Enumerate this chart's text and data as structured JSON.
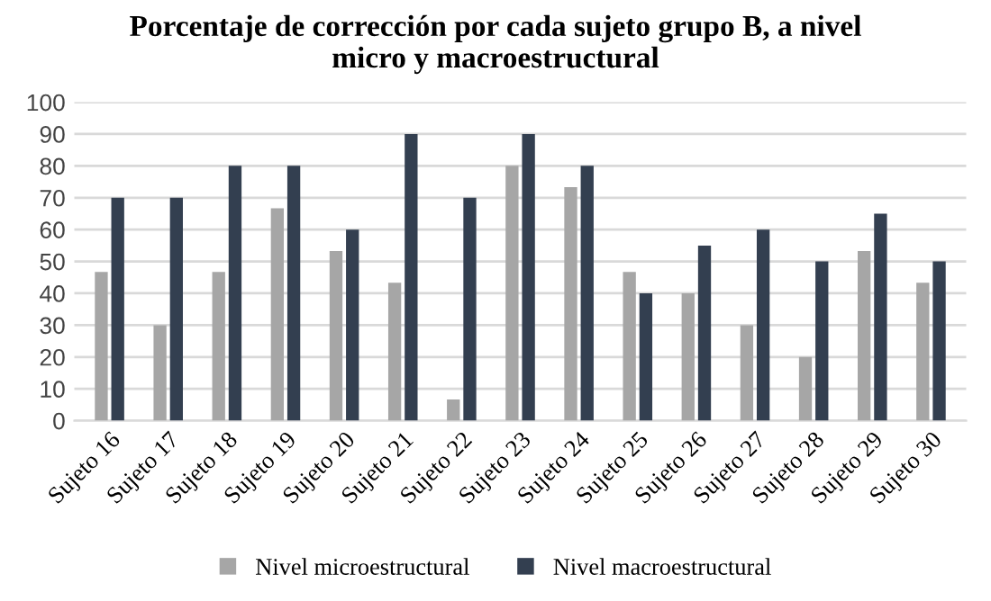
{
  "chart_data": {
    "type": "bar",
    "title": "Porcentaje de corrección por cada sujeto grupo B, a nivel\nmicro y macroestructural",
    "categories": [
      "Sujeto 16",
      "Sujeto 17",
      "Sujeto 18",
      "Sujeto 19",
      "Sujeto 20",
      "Sujeto 21",
      "Sujeto 22",
      "Sujeto 23",
      "Sujeto 24",
      "Sujeto 25",
      "Sujeto 26",
      "Sujeto 27",
      "Sujeto 28",
      "Sujeto 29",
      "Sujeto 30"
    ],
    "series": [
      {
        "name": "Nivel microestructural",
        "color": "#a6a6a6",
        "values": [
          46.7,
          30,
          46.7,
          66.7,
          53.3,
          43.3,
          6.7,
          80,
          73.3,
          46.7,
          40,
          30,
          20,
          53.3,
          43.3
        ]
      },
      {
        "name": "Nivel macroestructural",
        "color": "#333f50",
        "values": [
          70,
          70,
          80,
          80,
          60,
          90,
          70,
          90,
          80,
          40,
          55,
          60,
          50,
          65,
          50
        ]
      }
    ],
    "ylim": [
      0,
      100
    ],
    "yticks": [
      0,
      10,
      20,
      30,
      40,
      50,
      60,
      70,
      80,
      90,
      100
    ],
    "grid": "y",
    "legend": "bottom"
  }
}
